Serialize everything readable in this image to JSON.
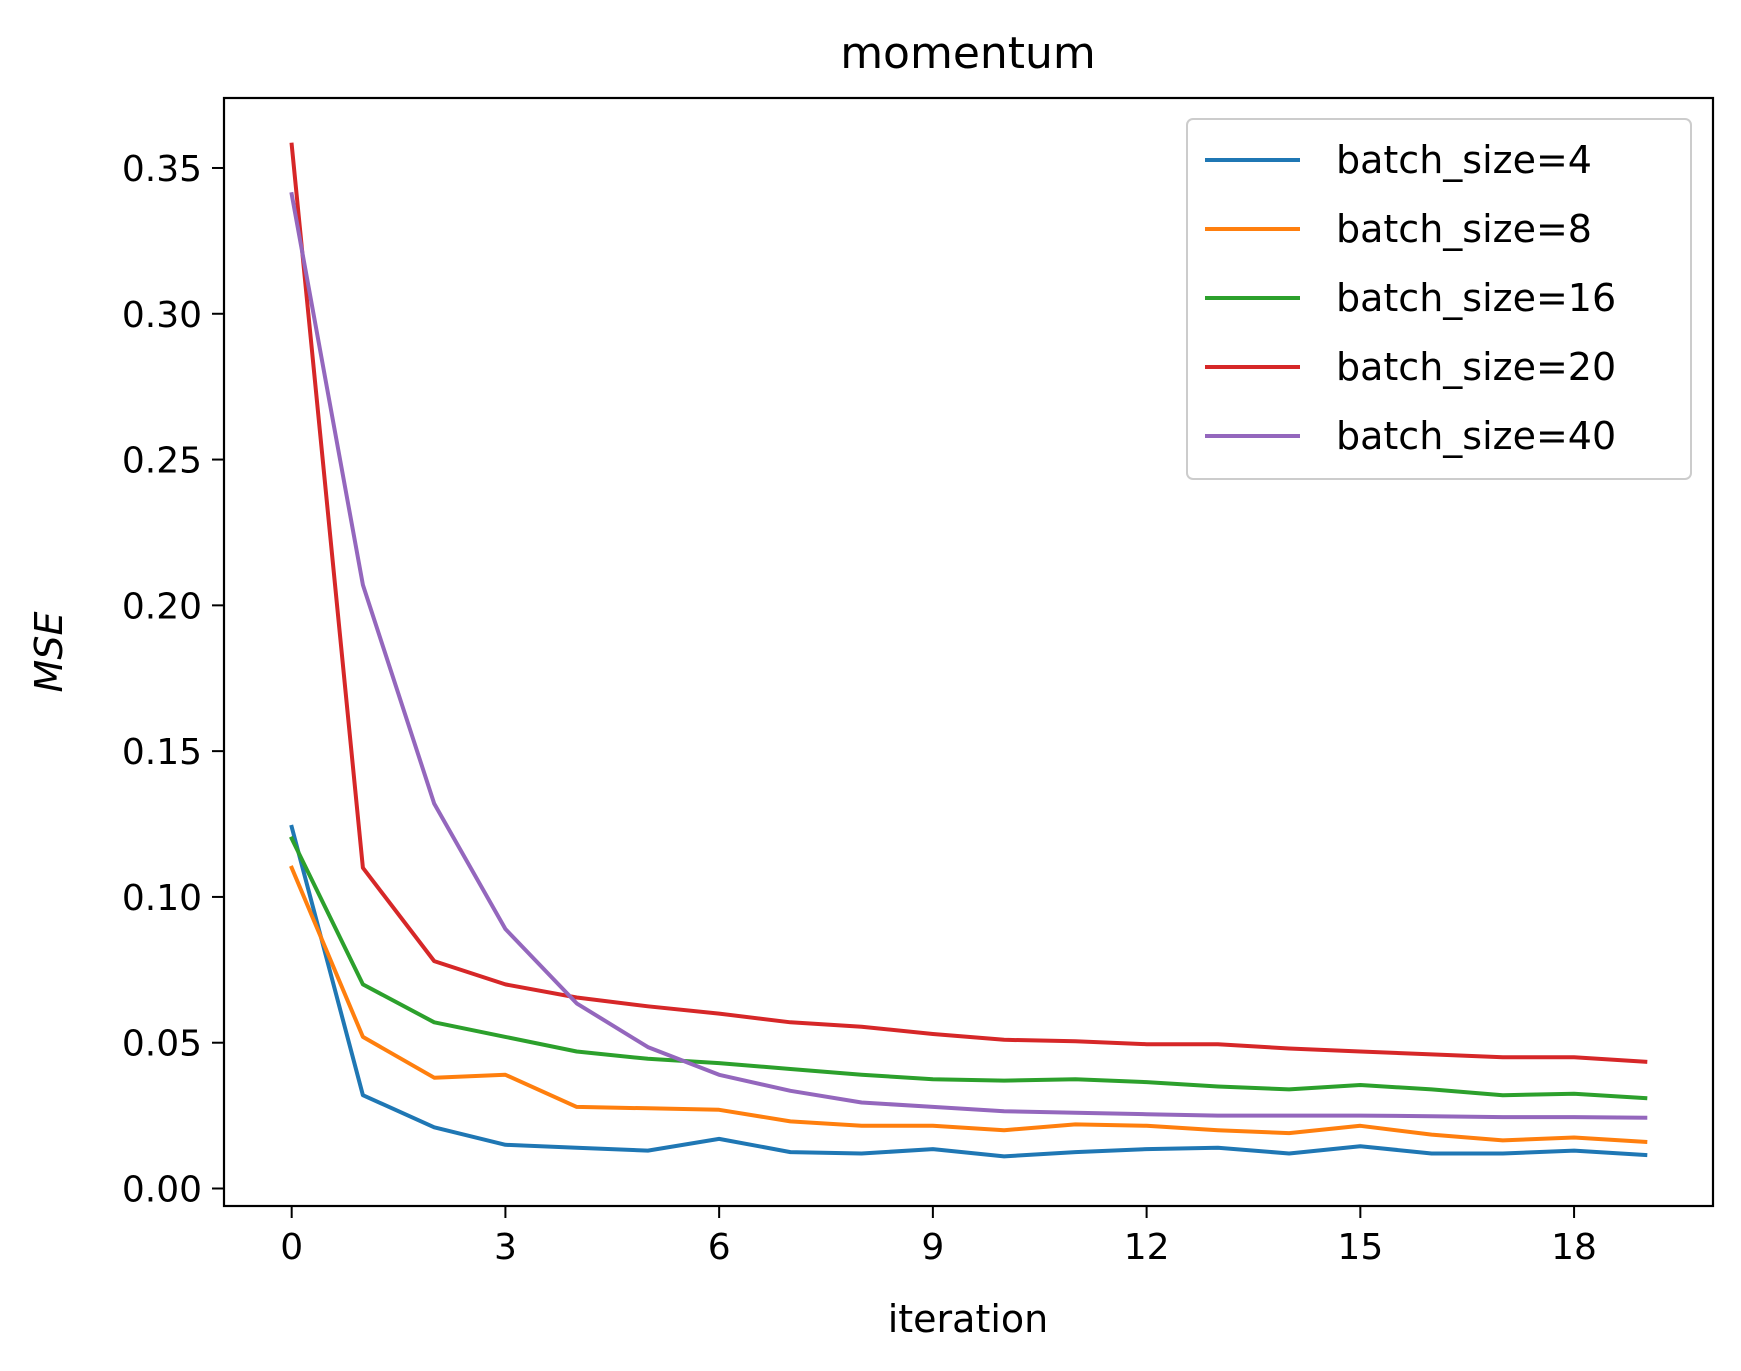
{
  "chart_data": {
    "type": "line",
    "title": "momentum",
    "xlabel": "iteration",
    "ylabel": "MSE",
    "xlim": [
      -0.95,
      19.95
    ],
    "ylim": [
      -0.006,
      0.374
    ],
    "xticks": [
      0,
      3,
      6,
      9,
      12,
      15,
      18
    ],
    "xtick_labels": [
      "0",
      "3",
      "6",
      "9",
      "12",
      "15",
      "18"
    ],
    "yticks": [
      0.0,
      0.05,
      0.1,
      0.15,
      0.2,
      0.25,
      0.3,
      0.35
    ],
    "ytick_labels": [
      "0.00",
      "0.05",
      "0.10",
      "0.15",
      "0.20",
      "0.25",
      "0.30",
      "0.35"
    ],
    "grid": false,
    "legend_position": "top-right",
    "x": [
      0,
      1,
      2,
      3,
      4,
      5,
      6,
      7,
      8,
      9,
      10,
      11,
      12,
      13,
      14,
      15,
      16,
      17,
      18,
      19
    ],
    "series": [
      {
        "name": "batch_size=4",
        "color": "#1f77b4",
        "values": [
          0.124,
          0.032,
          0.021,
          0.015,
          0.014,
          0.013,
          0.017,
          0.0125,
          0.012,
          0.0135,
          0.011,
          0.0125,
          0.0135,
          0.014,
          0.012,
          0.0145,
          0.012,
          0.012,
          0.013,
          0.0115
        ]
      },
      {
        "name": "batch_size=8",
        "color": "#ff7f0e",
        "values": [
          0.11,
          0.052,
          0.038,
          0.039,
          0.028,
          0.0275,
          0.027,
          0.023,
          0.0215,
          0.0215,
          0.02,
          0.022,
          0.0215,
          0.02,
          0.019,
          0.0215,
          0.0185,
          0.0165,
          0.0175,
          0.016
        ]
      },
      {
        "name": "batch_size=16",
        "color": "#2ca02c",
        "values": [
          0.12,
          0.07,
          0.057,
          0.052,
          0.047,
          0.0445,
          0.043,
          0.041,
          0.039,
          0.0375,
          0.037,
          0.0375,
          0.0365,
          0.035,
          0.034,
          0.0355,
          0.034,
          0.032,
          0.0325,
          0.031
        ]
      },
      {
        "name": "batch_size=20",
        "color": "#d62728",
        "values": [
          0.358,
          0.11,
          0.078,
          0.07,
          0.0655,
          0.0625,
          0.06,
          0.057,
          0.0555,
          0.053,
          0.051,
          0.0505,
          0.0495,
          0.0495,
          0.048,
          0.047,
          0.046,
          0.045,
          0.045,
          0.0435
        ]
      },
      {
        "name": "batch_size=40",
        "color": "#9467bd",
        "values": [
          0.341,
          0.207,
          0.132,
          0.089,
          0.0635,
          0.0485,
          0.039,
          0.0335,
          0.0295,
          0.028,
          0.0265,
          0.026,
          0.0255,
          0.025,
          0.025,
          0.025,
          0.0248,
          0.0245,
          0.0245,
          0.0243
        ]
      }
    ]
  }
}
